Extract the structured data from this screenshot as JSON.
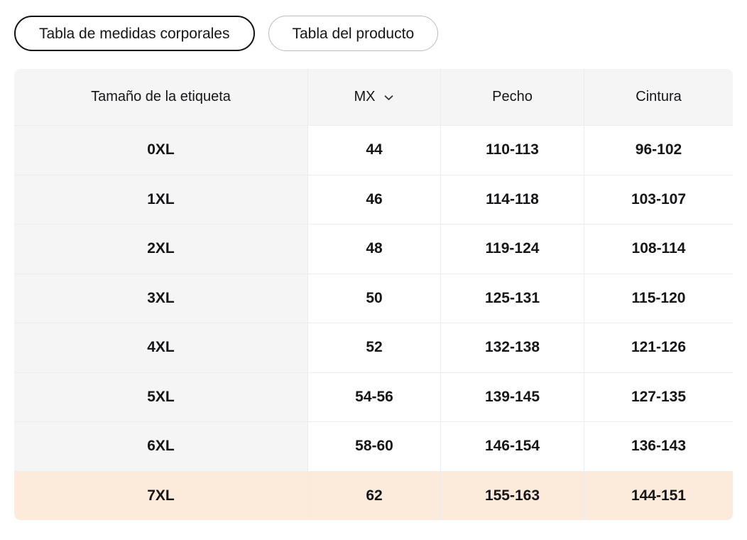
{
  "tabs": [
    {
      "label": "Tabla de medidas corporales",
      "active": true
    },
    {
      "label": "Tabla del producto",
      "active": false
    }
  ],
  "table": {
    "columns": [
      "Tamaño de la etiqueta",
      "MX",
      "Pecho",
      "Cintura"
    ],
    "unit_selector": {
      "value": "MX",
      "icon": "chevron-down-icon"
    },
    "rows": [
      {
        "size": "0XL",
        "mx": "44",
        "pecho": "110-113",
        "cintura": "96-102",
        "highlighted": false
      },
      {
        "size": "1XL",
        "mx": "46",
        "pecho": "114-118",
        "cintura": "103-107",
        "highlighted": false
      },
      {
        "size": "2XL",
        "mx": "48",
        "pecho": "119-124",
        "cintura": "108-114",
        "highlighted": false
      },
      {
        "size": "3XL",
        "mx": "50",
        "pecho": "125-131",
        "cintura": "115-120",
        "highlighted": false
      },
      {
        "size": "4XL",
        "mx": "52",
        "pecho": "132-138",
        "cintura": "121-126",
        "highlighted": false
      },
      {
        "size": "5XL",
        "mx": "54-56",
        "pecho": "139-145",
        "cintura": "127-135",
        "highlighted": false
      },
      {
        "size": "6XL",
        "mx": "58-60",
        "pecho": "146-154",
        "cintura": "136-143",
        "highlighted": false
      },
      {
        "size": "7XL",
        "mx": "62",
        "pecho": "155-163",
        "cintura": "144-151",
        "highlighted": true
      }
    ]
  },
  "colors": {
    "header_bg": "#f5f5f6",
    "label_bg": "#f5f5f6",
    "highlight_bg": "#fcebdb",
    "border": "#ececec",
    "text": "#16161a",
    "active_tab_border": "#111111",
    "inactive_tab_border": "#bcbcbc",
    "page_bg": "#ffffff"
  }
}
